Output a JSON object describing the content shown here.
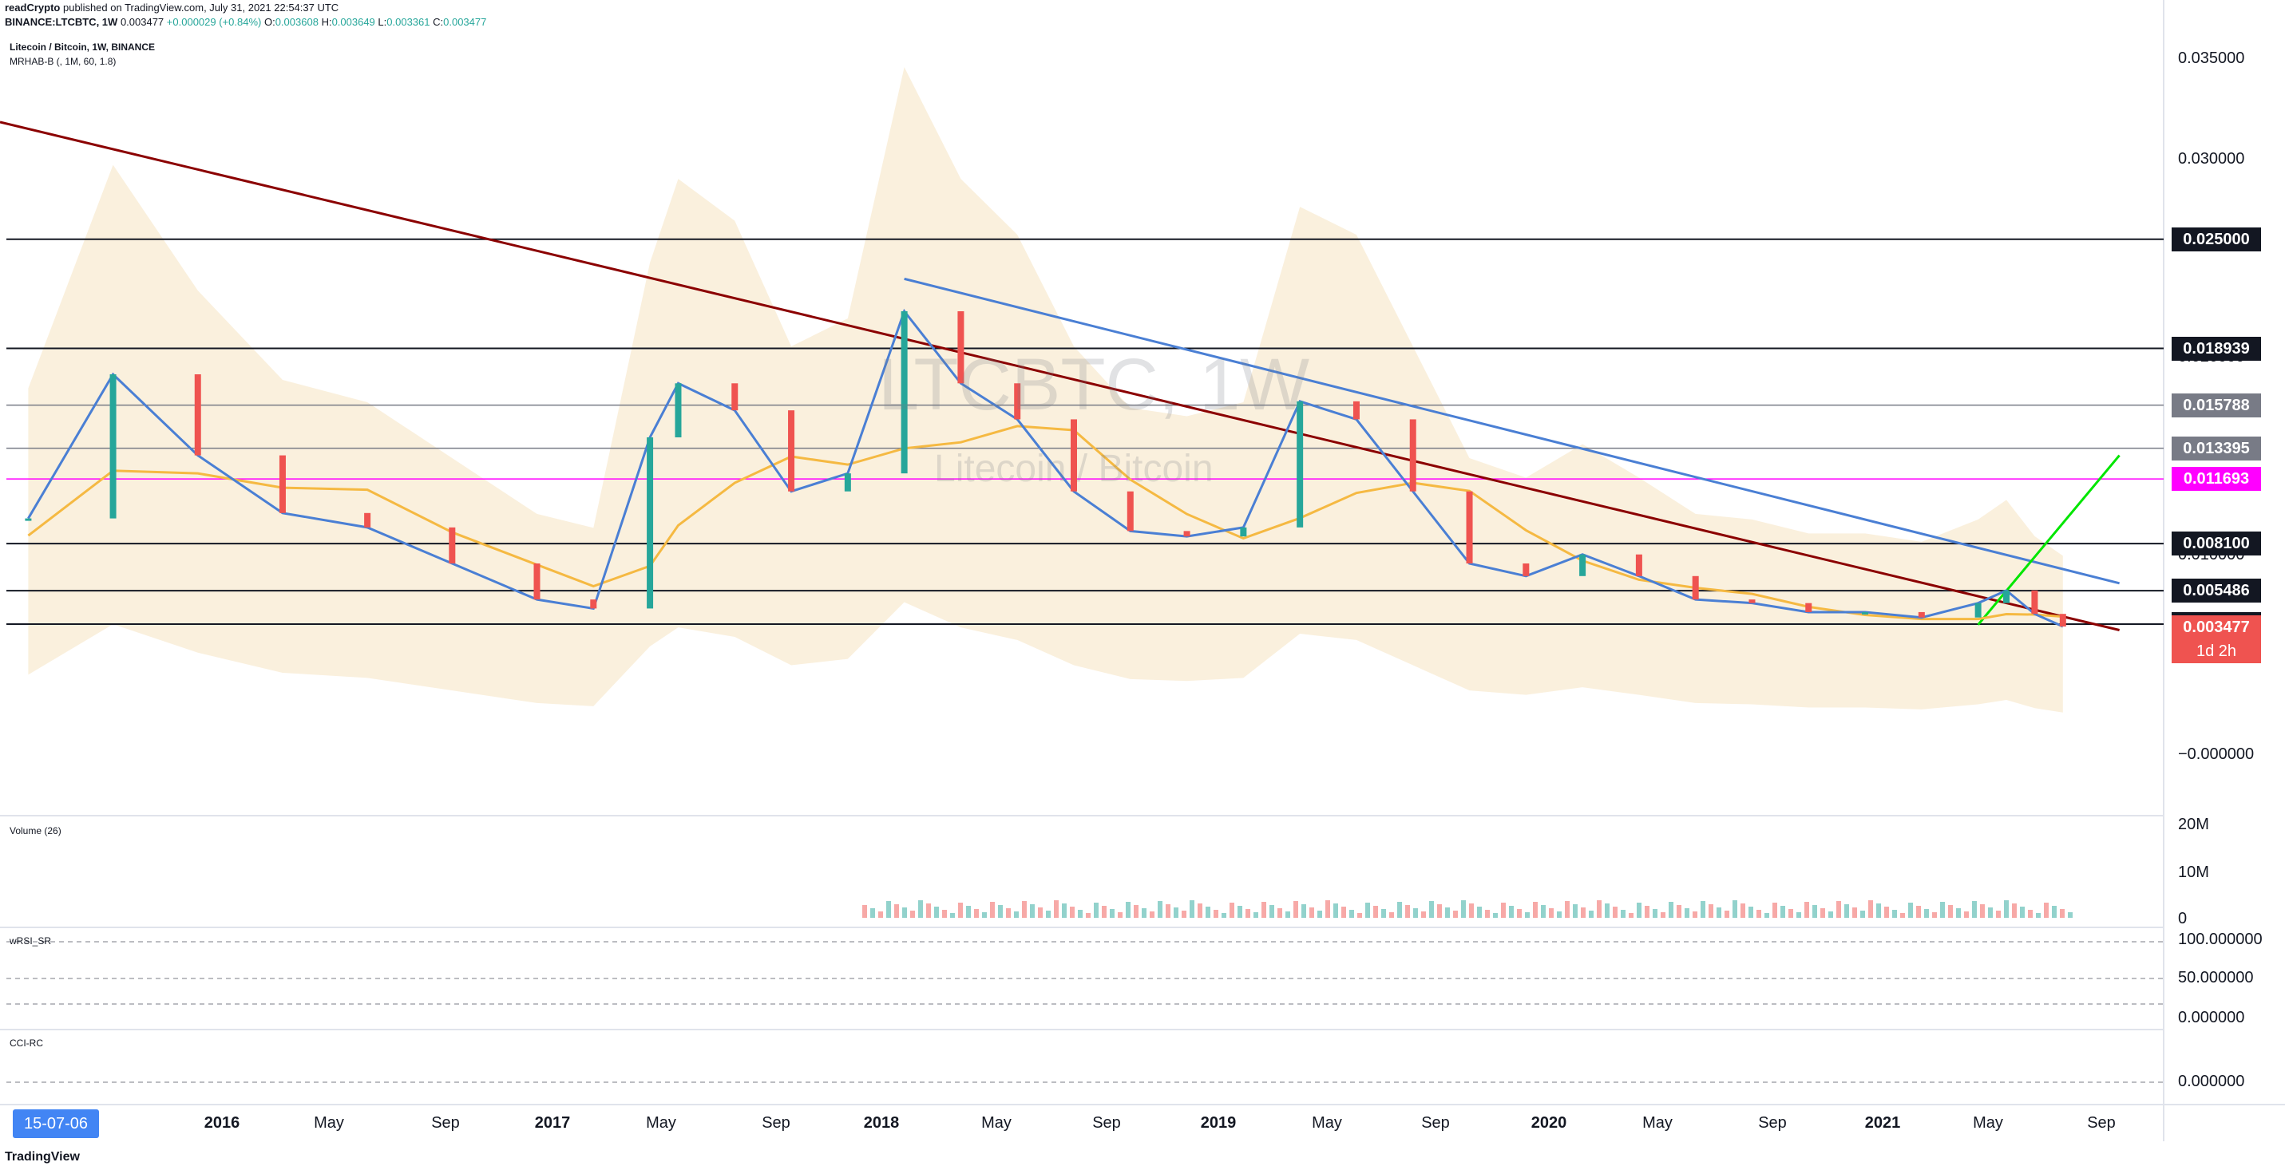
{
  "header": {
    "publisher": "readCrypto",
    "published_text": "published on TradingView.com, July 31, 2021 22:54:37 UTC",
    "symbol": "BINANCE:LTCBTC, 1W",
    "last": "0.003477",
    "change": "+0.000029 (+0.84%)",
    "o_label": "O:",
    "o": "0.003608",
    "h_label": "H:",
    "h": "0.003649",
    "l_label": "L:",
    "l": "0.003361",
    "c_label": "C:",
    "c": "0.003477"
  },
  "main_pane": {
    "title": "Litecoin / Bitcoin, 1W, BINANCE",
    "indicator": "MRHAB-B (, 1M, 60, 1.8)",
    "watermark_symbol": "LTCBTC, 1W",
    "watermark_name": "Litecoin / Bitcoin"
  },
  "volume_pane": {
    "label": "Volume (26)",
    "axis": [
      "20M",
      "10M",
      "0"
    ]
  },
  "rsi_pane": {
    "label": "wRSI_SR",
    "axis": [
      "100.000000",
      "50.000000",
      "0.000000"
    ]
  },
  "cci_pane": {
    "label": "CCI-RC",
    "axis": [
      "0.000000"
    ]
  },
  "price_axis": [
    "0.035000",
    "0.030000",
    "0.020000",
    "0.015000",
    "0.010000",
    "−0.000000"
  ],
  "price_tags": [
    {
      "value": "0.025000",
      "bg": "#131722",
      "fg": "#ffffff",
      "price": 0.025
    },
    {
      "value": "0.018939",
      "bg": "#131722",
      "fg": "#ffffff",
      "price": 0.018939
    },
    {
      "value": "0.015788",
      "bg": "#787b86",
      "fg": "#ffffff",
      "price": 0.015788
    },
    {
      "value": "0.013395",
      "bg": "#787b86",
      "fg": "#ffffff",
      "price": 0.013395
    },
    {
      "value": "0.011693",
      "bg": "#ff00ff",
      "fg": "#ffffff",
      "price": 0.011693
    },
    {
      "value": "0.008100",
      "bg": "#131722",
      "fg": "#ffffff",
      "price": 0.0081
    },
    {
      "value": "0.005486",
      "bg": "#131722",
      "fg": "#ffffff",
      "price": 0.005486
    },
    {
      "value": "0.003633",
      "bg": "#131722",
      "fg": "#ffffff",
      "price": 0.003633
    },
    {
      "value": "0.003477",
      "bg": "#ef5350",
      "fg": "#ffffff",
      "price": 0.003477
    }
  ],
  "countdown": "1d 2h",
  "time_axis": {
    "first_label": "15-07-06",
    "labels": [
      "2016",
      "May",
      "Sep",
      "2017",
      "May",
      "Sep",
      "2018",
      "May",
      "Sep",
      "2019",
      "May",
      "Sep",
      "2020",
      "May",
      "Sep",
      "2021",
      "May",
      "Sep"
    ]
  },
  "footer": "TradingView",
  "colors": {
    "up": "#26a69a",
    "down": "#ef5350",
    "trend_red": "#8b0000",
    "trend_blue": "#4a7fd4",
    "projection": "#00e600",
    "kijun": "#8d1f1f",
    "ema": "#f5b942",
    "band": "#f5deb3"
  },
  "chart_data": {
    "type": "line",
    "title": "Litecoin / Bitcoin, 1W, BINANCE",
    "ylim": [
      -0.002,
      0.037
    ],
    "x": [
      "2015-07",
      "2015-10",
      "2016-01",
      "2016-04",
      "2016-07",
      "2016-10",
      "2017-01",
      "2017-03",
      "2017-05",
      "2017-06",
      "2017-08",
      "2017-10",
      "2017-12",
      "2018-02",
      "2018-04",
      "2018-06",
      "2018-08",
      "2018-10",
      "2018-12",
      "2019-02",
      "2019-04",
      "2019-06",
      "2019-08",
      "2019-10",
      "2019-12",
      "2020-02",
      "2020-04",
      "2020-06",
      "2020-08",
      "2020-10",
      "2020-12",
      "2021-02",
      "2021-04",
      "2021-05",
      "2021-06",
      "2021-07"
    ],
    "series": [
      {
        "values": [
          0.0095,
          0.0175,
          0.013,
          0.0098,
          0.009,
          0.007,
          0.005,
          0.0045,
          0.014,
          0.017,
          0.0155,
          0.011,
          0.012,
          0.021,
          0.017,
          0.015,
          0.011,
          0.0088,
          0.0085,
          0.009,
          0.016,
          0.015,
          0.011,
          0.007,
          0.0063,
          0.0075,
          0.0063,
          0.005,
          0.0048,
          0.0043,
          0.0043,
          0.004,
          0.0048,
          0.0055,
          0.0042,
          0.0035
        ]
      }
    ],
    "horizontal_levels": [
      0.025,
      0.018939,
      0.015788,
      0.013395,
      0.011693,
      0.0081,
      0.005486,
      0.003633
    ],
    "trendlines": [
      {
        "from": [
          "2015-06",
          0.0315
        ],
        "to": [
          "2021-09",
          0.0033
        ]
      },
      {
        "from": [
          "2018-02",
          0.0228
        ],
        "to": [
          "2021-09",
          0.0059
        ]
      },
      {
        "from": [
          "2021-04",
          0.0036
        ],
        "to": [
          "2021-09",
          0.013
        ]
      }
    ]
  }
}
